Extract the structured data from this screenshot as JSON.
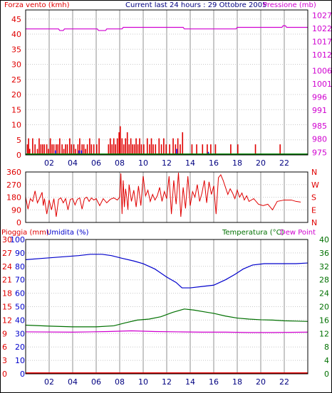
{
  "header": {
    "wind_label": "Forza vento (kmh)",
    "title": "Current last 24 hours : 29 Ottobre 2005",
    "pressure_label": "Pressione (mb)"
  },
  "colors": {
    "wind": "#e00000",
    "gust": "#1010ff",
    "pressure": "#d000d0",
    "direction": "#e00000",
    "rain": "#e00000",
    "humidity": "#0000cc",
    "temperature": "#007000",
    "dewpoint": "#d000d0",
    "grid": "#c8c8c8",
    "frame": "#000000"
  },
  "chart_data": [
    {
      "panel": "wind-pressure",
      "type": "bar",
      "left_axis": {
        "label": "Forza vento (kmh)",
        "ticks": [
          0,
          5,
          10,
          15,
          20,
          25,
          30,
          35,
          40,
          45
        ],
        "range": [
          0,
          48
        ]
      },
      "right_axis": {
        "label": "Pressione (mb)",
        "ticks": [
          975,
          980,
          985,
          991,
          996,
          1001,
          1006,
          1012,
          1017,
          1022,
          1027
        ],
        "range": [
          974,
          1029
        ]
      },
      "x_ticks": [
        "02",
        "04",
        "06",
        "08",
        "10",
        "12",
        "14",
        "16",
        "18",
        "20",
        "22"
      ],
      "x_range": [
        0,
        24
      ],
      "grid": true,
      "wind_bars": [
        [
          0.1,
          3.5
        ],
        [
          0.2,
          5.5
        ],
        [
          0.3,
          2
        ],
        [
          0.55,
          5.5
        ],
        [
          0.75,
          3.5
        ],
        [
          0.95,
          2
        ],
        [
          1.1,
          5.5
        ],
        [
          1.25,
          3.5
        ],
        [
          1.4,
          3.5
        ],
        [
          1.55,
          3.5
        ],
        [
          1.75,
          3.5
        ],
        [
          1.9,
          2
        ],
        [
          2.05,
          5.5
        ],
        [
          2.2,
          3.5
        ],
        [
          2.35,
          3.5
        ],
        [
          2.55,
          3.5
        ],
        [
          2.7,
          3.5
        ],
        [
          2.85,
          5.5
        ],
        [
          3.05,
          3.5
        ],
        [
          3.2,
          2
        ],
        [
          3.35,
          3.5
        ],
        [
          3.5,
          3.5
        ],
        [
          3.7,
          5.5
        ],
        [
          3.85,
          3.5
        ],
        [
          4.05,
          3.5
        ],
        [
          4.2,
          2
        ],
        [
          4.4,
          3.5
        ],
        [
          4.55,
          5.5
        ],
        [
          4.75,
          3.5
        ],
        [
          4.9,
          3.5
        ],
        [
          5.05,
          2
        ],
        [
          5.2,
          3.5
        ],
        [
          5.4,
          5.5
        ],
        [
          5.55,
          3.5
        ],
        [
          5.75,
          3.5
        ],
        [
          6.0,
          3.5
        ],
        [
          6.2,
          5.5
        ],
        [
          7.0,
          3.5
        ],
        [
          7.15,
          5.5
        ],
        [
          7.3,
          3.5
        ],
        [
          7.45,
          5.5
        ],
        [
          7.6,
          3.5
        ],
        [
          7.75,
          5.5
        ],
        [
          7.9,
          7.5
        ],
        [
          8.0,
          9.5
        ],
        [
          8.15,
          5.5
        ],
        [
          8.3,
          3.5
        ],
        [
          8.45,
          5.5
        ],
        [
          8.6,
          7.5
        ],
        [
          8.75,
          3.5
        ],
        [
          8.9,
          5.5
        ],
        [
          9.05,
          3.5
        ],
        [
          9.2,
          3.5
        ],
        [
          9.35,
          5.5
        ],
        [
          9.5,
          3.5
        ],
        [
          9.65,
          5.5
        ],
        [
          9.8,
          3.5
        ],
        [
          10.0,
          3.5
        ],
        [
          10.3,
          5.5
        ],
        [
          10.5,
          3.5
        ],
        [
          10.65,
          5.5
        ],
        [
          10.8,
          3.5
        ],
        [
          11.0,
          3.5
        ],
        [
          11.3,
          5.5
        ],
        [
          11.5,
          3.5
        ],
        [
          11.7,
          5.5
        ],
        [
          11.9,
          3.5
        ],
        [
          12.2,
          3.5
        ],
        [
          12.5,
          5.5
        ],
        [
          12.7,
          3.5
        ],
        [
          12.9,
          5.5
        ],
        [
          13.1,
          3.5
        ],
        [
          13.3,
          7.5
        ],
        [
          14.1,
          3.5
        ],
        [
          14.5,
          3.5
        ],
        [
          15.0,
          3.5
        ],
        [
          15.4,
          3.5
        ],
        [
          15.7,
          3.5
        ],
        [
          16.1,
          3.5
        ],
        [
          17.4,
          3.5
        ],
        [
          18.0,
          3.5
        ],
        [
          19.5,
          3.5
        ],
        [
          21.6,
          3.5
        ]
      ],
      "gust_bars": [
        [
          2.5,
          1.5
        ],
        [
          4.5,
          1.5
        ],
        [
          4.7,
          1.5
        ],
        [
          12.8,
          2
        ],
        [
          15.5,
          1
        ]
      ],
      "pressure": [
        [
          0,
          1021.8
        ],
        [
          2.8,
          1021.8
        ],
        [
          2.9,
          1021.2
        ],
        [
          3.2,
          1021.2
        ],
        [
          3.3,
          1021.8
        ],
        [
          6.1,
          1021.8
        ],
        [
          6.2,
          1021.2
        ],
        [
          6.8,
          1021.2
        ],
        [
          6.9,
          1021.8
        ],
        [
          8.2,
          1021.8
        ],
        [
          8.3,
          1022.4
        ],
        [
          13.4,
          1022.4
        ],
        [
          13.5,
          1021.8
        ],
        [
          17.9,
          1021.8
        ],
        [
          18.0,
          1022.4
        ],
        [
          21.8,
          1022.4
        ],
        [
          21.9,
          1023.0
        ],
        [
          22.1,
          1023.0
        ],
        [
          22.2,
          1022.4
        ],
        [
          24,
          1022.4
        ]
      ]
    },
    {
      "panel": "wind-direction",
      "type": "line",
      "left_axis": {
        "ticks": [
          0,
          90,
          180,
          270,
          360
        ],
        "range": [
          0,
          360
        ]
      },
      "right_axis": {
        "ticks": [
          "N",
          "W",
          "S",
          "E",
          "N"
        ]
      },
      "x_range": [
        0,
        24
      ],
      "grid": true,
      "series": [
        [
          0,
          180
        ],
        [
          0.2,
          95
        ],
        [
          0.4,
          170
        ],
        [
          0.6,
          150
        ],
        [
          0.8,
          225
        ],
        [
          1.0,
          140
        ],
        [
          1.2,
          175
        ],
        [
          1.4,
          215
        ],
        [
          1.5,
          120
        ],
        [
          1.6,
          170
        ],
        [
          1.8,
          60
        ],
        [
          2.0,
          160
        ],
        [
          2.2,
          90
        ],
        [
          2.4,
          170
        ],
        [
          2.6,
          40
        ],
        [
          2.8,
          165
        ],
        [
          3.0,
          175
        ],
        [
          3.2,
          140
        ],
        [
          3.4,
          170
        ],
        [
          3.6,
          90
        ],
        [
          3.8,
          165
        ],
        [
          4.0,
          170
        ],
        [
          4.2,
          125
        ],
        [
          4.4,
          165
        ],
        [
          4.6,
          175
        ],
        [
          4.8,
          95
        ],
        [
          5.0,
          170
        ],
        [
          5.2,
          180
        ],
        [
          5.4,
          150
        ],
        [
          5.6,
          175
        ],
        [
          5.8,
          160
        ],
        [
          6.0,
          170
        ],
        [
          6.3,
          120
        ],
        [
          6.6,
          170
        ],
        [
          6.9,
          140
        ],
        [
          7.2,
          165
        ],
        [
          7.5,
          175
        ],
        [
          7.8,
          160
        ],
        [
          8.0,
          180
        ],
        [
          8.1,
          350
        ],
        [
          8.2,
          60
        ],
        [
          8.3,
          300
        ],
        [
          8.4,
          110
        ],
        [
          8.5,
          240
        ],
        [
          8.6,
          180
        ],
        [
          8.7,
          90
        ],
        [
          8.8,
          270
        ],
        [
          9.0,
          150
        ],
        [
          9.2,
          230
        ],
        [
          9.4,
          110
        ],
        [
          9.6,
          260
        ],
        [
          9.8,
          120
        ],
        [
          10.0,
          330
        ],
        [
          10.2,
          190
        ],
        [
          10.4,
          230
        ],
        [
          10.6,
          150
        ],
        [
          10.8,
          200
        ],
        [
          11.0,
          160
        ],
        [
          11.2,
          190
        ],
        [
          11.4,
          250
        ],
        [
          11.6,
          150
        ],
        [
          11.8,
          220
        ],
        [
          12.0,
          170
        ],
        [
          12.2,
          330
        ],
        [
          12.4,
          60
        ],
        [
          12.6,
          300
        ],
        [
          12.8,
          130
        ],
        [
          13.0,
          355
        ],
        [
          13.2,
          40
        ],
        [
          13.4,
          250
        ],
        [
          13.6,
          100
        ],
        [
          13.8,
          330
        ],
        [
          14.0,
          120
        ],
        [
          14.2,
          220
        ],
        [
          14.4,
          180
        ],
        [
          14.6,
          270
        ],
        [
          14.8,
          150
        ],
        [
          15.0,
          210
        ],
        [
          15.2,
          300
        ],
        [
          15.4,
          140
        ],
        [
          15.6,
          290
        ],
        [
          15.8,
          200
        ],
        [
          16.0,
          260
        ],
        [
          16.2,
          60
        ],
        [
          16.4,
          320
        ],
        [
          16.6,
          340
        ],
        [
          16.8,
          300
        ],
        [
          17.0,
          250
        ],
        [
          17.2,
          200
        ],
        [
          17.4,
          240
        ],
        [
          17.6,
          210
        ],
        [
          17.8,
          170
        ],
        [
          18.0,
          230
        ],
        [
          18.2,
          180
        ],
        [
          18.4,
          210
        ],
        [
          18.6,
          160
        ],
        [
          18.8,
          190
        ],
        [
          19.0,
          150
        ],
        [
          19.4,
          170
        ],
        [
          19.8,
          130
        ],
        [
          20.2,
          120
        ],
        [
          20.6,
          130
        ],
        [
          21.0,
          90
        ],
        [
          21.4,
          150
        ],
        [
          22.0,
          160
        ],
        [
          22.6,
          160
        ],
        [
          23.0,
          150
        ],
        [
          23.4,
          145
        ]
      ]
    },
    {
      "panel": "rain-humidity-temperature",
      "type": "line",
      "header_labels": [
        "Pioggia (mm)",
        "Umidita (%)",
        "Temperatura (°C)",
        "Dew Point"
      ],
      "left_axis_rain": {
        "label": "Pioggia (mm)",
        "ticks": [
          0,
          3,
          6,
          9,
          12,
          15,
          18,
          21,
          24,
          27,
          30
        ],
        "range": [
          0,
          30
        ]
      },
      "left_axis_humidity": {
        "label": "Umidita (%)",
        "ticks": [
          0,
          10,
          20,
          30,
          40,
          50,
          60,
          70,
          80,
          90,
          100
        ],
        "range": [
          0,
          100
        ]
      },
      "right_axis": {
        "label": "Temperatura (°C)",
        "ticks": [
          0,
          4,
          8,
          12,
          16,
          20,
          24,
          28,
          32,
          36,
          40
        ],
        "range": [
          0,
          40
        ]
      },
      "x_ticks": [
        "02",
        "04",
        "06",
        "08",
        "10",
        "12",
        "14",
        "16",
        "18",
        "20",
        "22"
      ],
      "x_range": [
        0,
        24
      ],
      "grid": true,
      "series": [
        {
          "name": "Umidita",
          "values": [
            [
              0,
              85
            ],
            [
              1.5,
              86
            ],
            [
              3,
              87
            ],
            [
              4.5,
              88
            ],
            [
              5.5,
              89
            ],
            [
              6.5,
              89
            ],
            [
              7.3,
              88
            ],
            [
              8.2,
              86
            ],
            [
              9.2,
              84
            ],
            [
              10,
              82
            ],
            [
              11,
              78
            ],
            [
              12,
              72
            ],
            [
              12.8,
              68
            ],
            [
              13.3,
              64
            ],
            [
              14,
              64
            ],
            [
              15,
              65
            ],
            [
              16,
              66
            ],
            [
              17,
              70
            ],
            [
              17.8,
              74
            ],
            [
              18.5,
              78
            ],
            [
              19.3,
              81
            ],
            [
              20.3,
              82
            ],
            [
              21.5,
              82
            ],
            [
              23,
              82
            ],
            [
              24,
              82.5
            ]
          ]
        },
        {
          "name": "Temperatura",
          "values": [
            [
              0,
              14.5
            ],
            [
              2,
              14.2
            ],
            [
              4,
              14.0
            ],
            [
              6,
              14.0
            ],
            [
              7.5,
              14.3
            ],
            [
              8.5,
              15.2
            ],
            [
              9.5,
              16.0
            ],
            [
              10.5,
              16.3
            ],
            [
              11.5,
              17.0
            ],
            [
              12.5,
              18.3
            ],
            [
              13.5,
              19.3
            ],
            [
              14.3,
              19.0
            ],
            [
              15.3,
              18.4
            ],
            [
              16,
              18.0
            ],
            [
              17,
              17.2
            ],
            [
              18,
              16.6
            ],
            [
              19,
              16.3
            ],
            [
              20,
              16.1
            ],
            [
              21,
              16.0
            ],
            [
              22,
              15.8
            ],
            [
              23,
              15.7
            ],
            [
              24,
              15.6
            ]
          ]
        },
        {
          "name": "Dew Point",
          "values": [
            [
              0,
              12.5
            ],
            [
              4,
              12.4
            ],
            [
              7,
              12.6
            ],
            [
              9,
              12.8
            ],
            [
              11,
              12.6
            ],
            [
              13,
              12.5
            ],
            [
              15,
              12.4
            ],
            [
              17,
              12.4
            ],
            [
              19,
              12.3
            ],
            [
              21,
              12.3
            ],
            [
              24,
              12.4
            ]
          ]
        },
        {
          "name": "Pioggia",
          "values": [
            [
              0,
              0
            ],
            [
              24,
              0
            ]
          ]
        }
      ]
    }
  ]
}
